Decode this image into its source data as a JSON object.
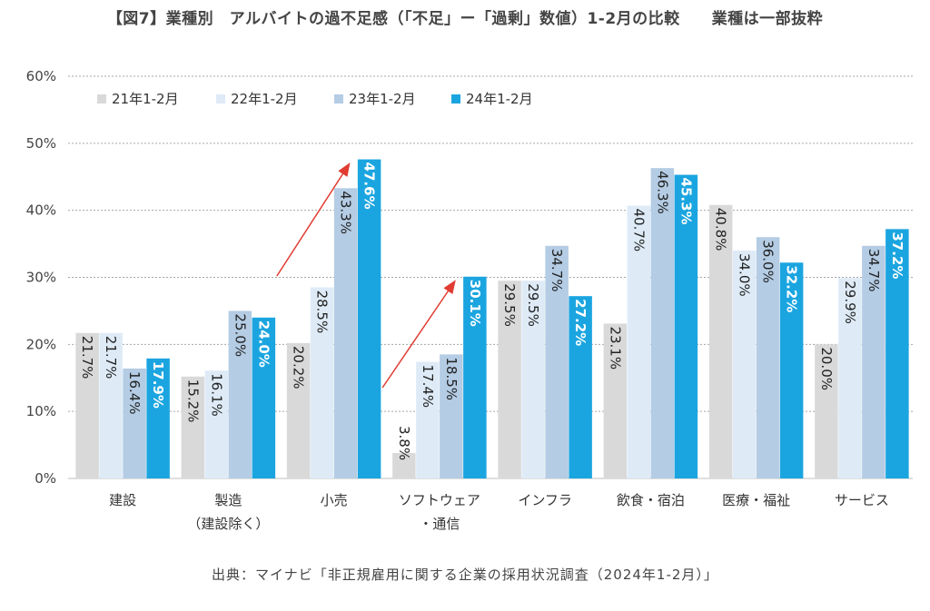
{
  "chart_data": {
    "type": "bar",
    "title": "【図7】業種別　アルバイトの過不足感（「不足」ー「過剰」数値）1-2月の比較　　業種は一部抜粋",
    "source": "出典：マイナビ「非正規雇用に関する企業の採用状況調査（2024年1-2月）」",
    "ylim": [
      0,
      60
    ],
    "yticks": [
      "0%",
      "10%",
      "20%",
      "30%",
      "40%",
      "50%",
      "60%"
    ],
    "legend_position": "top-left",
    "grid": true,
    "categories": [
      [
        "建設"
      ],
      [
        "製造",
        "（建設除く）"
      ],
      [
        "小売"
      ],
      [
        "ソフトウェア",
        "・通信"
      ],
      [
        "インフラ"
      ],
      [
        "飲食・宿泊"
      ],
      [
        "医療・福祉"
      ],
      [
        "サービス"
      ]
    ],
    "series": [
      {
        "name": "21年1-2月",
        "color": "#d9d9d9",
        "values": [
          21.7,
          15.2,
          20.2,
          3.8,
          29.5,
          23.1,
          40.8,
          20.0
        ],
        "labels": [
          "21.7%",
          "15.2%",
          "20.2%",
          "3.8%",
          "29.5%",
          "23.1%",
          "40.8%",
          "20.0%"
        ]
      },
      {
        "name": "22年1-2月",
        "color": "#deebf7",
        "values": [
          21.7,
          16.1,
          28.5,
          17.4,
          29.5,
          40.7,
          34.0,
          29.9
        ],
        "labels": [
          "21.7%",
          "16.1%",
          "28.5%",
          "17.4%",
          "29.5%",
          "40.7%",
          "34.0%",
          "29.9%"
        ]
      },
      {
        "name": "23年1-2月",
        "color": "#b4cce4",
        "values": [
          16.4,
          25.0,
          43.3,
          18.5,
          34.7,
          46.3,
          36.0,
          34.7
        ],
        "labels": [
          "16.4%",
          "25.0%",
          "43.3%",
          "18.5%",
          "34.7%",
          "46.3%",
          "36.0%",
          "34.7%"
        ]
      },
      {
        "name": "24年1-2月",
        "color": "#1ba5e0",
        "values": [
          17.9,
          24.0,
          47.6,
          30.1,
          27.2,
          45.3,
          32.2,
          37.2
        ],
        "labels": [
          "17.9%",
          "24.0%",
          "47.6%",
          "30.1%",
          "27.2%",
          "45.3%",
          "32.2%",
          "37.2%"
        ]
      }
    ],
    "annotations": [
      {
        "type": "arrow",
        "category_index": 2,
        "color": "#e03c31"
      },
      {
        "type": "arrow",
        "category_index": 3,
        "color": "#e03c31"
      }
    ]
  }
}
